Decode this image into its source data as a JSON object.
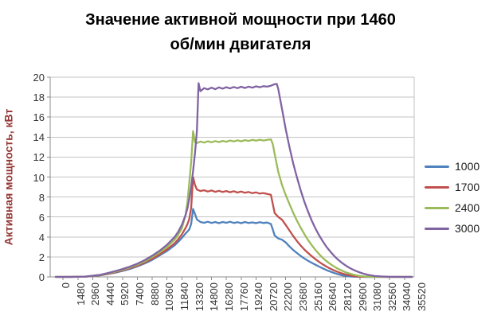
{
  "chart_data": {
    "type": "line",
    "title": "Значение активной мощности при 1460\nоб/мин двигателя",
    "xlabel": "",
    "ylabel": "Активная мощность, кВт",
    "ylabel_color": "#943634",
    "ylim": [
      0,
      20
    ],
    "xlim": [
      0,
      35520
    ],
    "grid": "horizontal-only",
    "gridline_color": "#C3C3C3",
    "axis_line_color": "#8C8C8C",
    "tick_label_color": "#333333",
    "legend_position": "right",
    "y_ticks": [
      0,
      2,
      4,
      6,
      8,
      10,
      12,
      14,
      16,
      18,
      20
    ],
    "x_ticks": [
      0,
      1480,
      2960,
      4440,
      5920,
      7400,
      8880,
      10360,
      11840,
      13320,
      14800,
      16280,
      17760,
      19240,
      20720,
      22200,
      23680,
      25160,
      26640,
      28120,
      29600,
      31080,
      32560,
      34040,
      35520
    ],
    "series": [
      {
        "name": "1000",
        "color": "#4F81BD",
        "points": [
          [
            0,
            0
          ],
          [
            1480,
            0
          ],
          [
            2960,
            0.02
          ],
          [
            4440,
            0.15
          ],
          [
            5180,
            0.28
          ],
          [
            5920,
            0.42
          ],
          [
            6660,
            0.6
          ],
          [
            7400,
            0.8
          ],
          [
            8140,
            1.05
          ],
          [
            8880,
            1.35
          ],
          [
            9620,
            1.7
          ],
          [
            10360,
            2.15
          ],
          [
            11100,
            2.6
          ],
          [
            11840,
            3.15
          ],
          [
            12210,
            3.5
          ],
          [
            12580,
            3.9
          ],
          [
            12950,
            4.35
          ],
          [
            13140,
            4.55
          ],
          [
            13320,
            4.75
          ],
          [
            13510,
            5.3
          ],
          [
            13700,
            6.8
          ],
          [
            13890,
            6.3
          ],
          [
            14080,
            5.75
          ],
          [
            14430,
            5.5
          ],
          [
            14800,
            5.42
          ],
          [
            15170,
            5.52
          ],
          [
            15540,
            5.4
          ],
          [
            15910,
            5.5
          ],
          [
            16280,
            5.38
          ],
          [
            16650,
            5.5
          ],
          [
            17020,
            5.42
          ],
          [
            17390,
            5.52
          ],
          [
            17760,
            5.4
          ],
          [
            18130,
            5.48
          ],
          [
            18500,
            5.38
          ],
          [
            18870,
            5.5
          ],
          [
            19240,
            5.4
          ],
          [
            19610,
            5.46
          ],
          [
            19980,
            5.38
          ],
          [
            20350,
            5.48
          ],
          [
            20720,
            5.4
          ],
          [
            21090,
            5.44
          ],
          [
            21460,
            5.3
          ],
          [
            21650,
            4.75
          ],
          [
            21830,
            4.15
          ],
          [
            22200,
            3.85
          ],
          [
            22570,
            3.72
          ],
          [
            22940,
            3.45
          ],
          [
            23310,
            3.05
          ],
          [
            23680,
            2.7
          ],
          [
            24050,
            2.4
          ],
          [
            24420,
            2.1
          ],
          [
            24790,
            1.85
          ],
          [
            25160,
            1.62
          ],
          [
            25530,
            1.42
          ],
          [
            25900,
            1.22
          ],
          [
            26270,
            1.03
          ],
          [
            26640,
            0.85
          ],
          [
            27010,
            0.68
          ],
          [
            27380,
            0.53
          ],
          [
            27750,
            0.4
          ],
          [
            28120,
            0.28
          ],
          [
            28490,
            0.18
          ],
          [
            28860,
            0.1
          ],
          [
            29230,
            0.05
          ],
          [
            29600,
            0.02
          ],
          [
            30340,
            0
          ],
          [
            31820,
            0
          ],
          [
            33300,
            0
          ],
          [
            34780,
            0
          ],
          [
            35520,
            0
          ]
        ]
      },
      {
        "name": "1700",
        "color": "#C0504D",
        "points": [
          [
            0,
            0
          ],
          [
            1480,
            0
          ],
          [
            2960,
            0.02
          ],
          [
            4440,
            0.17
          ],
          [
            5180,
            0.3
          ],
          [
            5920,
            0.46
          ],
          [
            6660,
            0.65
          ],
          [
            7400,
            0.87
          ],
          [
            8140,
            1.12
          ],
          [
            8880,
            1.44
          ],
          [
            9620,
            1.8
          ],
          [
            10360,
            2.25
          ],
          [
            11100,
            2.75
          ],
          [
            11840,
            3.35
          ],
          [
            12210,
            3.75
          ],
          [
            12580,
            4.25
          ],
          [
            12950,
            4.9
          ],
          [
            13140,
            5.3
          ],
          [
            13320,
            5.8
          ],
          [
            13510,
            6.9
          ],
          [
            13700,
            10.0
          ],
          [
            13890,
            9.2
          ],
          [
            14080,
            8.75
          ],
          [
            14430,
            8.6
          ],
          [
            14800,
            8.68
          ],
          [
            15170,
            8.55
          ],
          [
            15540,
            8.65
          ],
          [
            15910,
            8.52
          ],
          [
            16280,
            8.62
          ],
          [
            16650,
            8.5
          ],
          [
            17020,
            8.6
          ],
          [
            17390,
            8.48
          ],
          [
            17760,
            8.58
          ],
          [
            18130,
            8.45
          ],
          [
            18500,
            8.55
          ],
          [
            18870,
            8.42
          ],
          [
            19240,
            8.5
          ],
          [
            19610,
            8.38
          ],
          [
            19980,
            8.46
          ],
          [
            20350,
            8.34
          ],
          [
            20720,
            8.4
          ],
          [
            21090,
            8.3
          ],
          [
            21460,
            8.22
          ],
          [
            21650,
            7.3
          ],
          [
            21830,
            6.4
          ],
          [
            22200,
            6.0
          ],
          [
            22570,
            5.72
          ],
          [
            22940,
            5.2
          ],
          [
            23310,
            4.65
          ],
          [
            23680,
            4.1
          ],
          [
            24050,
            3.6
          ],
          [
            24420,
            3.15
          ],
          [
            24790,
            2.75
          ],
          [
            25160,
            2.4
          ],
          [
            25530,
            2.08
          ],
          [
            25900,
            1.78
          ],
          [
            26270,
            1.5
          ],
          [
            26640,
            1.25
          ],
          [
            27010,
            1.03
          ],
          [
            27380,
            0.83
          ],
          [
            27750,
            0.65
          ],
          [
            28120,
            0.5
          ],
          [
            28490,
            0.37
          ],
          [
            28860,
            0.26
          ],
          [
            29230,
            0.17
          ],
          [
            29600,
            0.1
          ],
          [
            29970,
            0.05
          ],
          [
            30340,
            0.02
          ],
          [
            31080,
            0
          ],
          [
            32560,
            0
          ],
          [
            34040,
            0
          ],
          [
            35520,
            0
          ]
        ]
      },
      {
        "name": "2400",
        "color": "#9BBB59",
        "points": [
          [
            0,
            0
          ],
          [
            1480,
            0
          ],
          [
            2960,
            0.03
          ],
          [
            4440,
            0.19
          ],
          [
            5180,
            0.34
          ],
          [
            5920,
            0.52
          ],
          [
            6660,
            0.72
          ],
          [
            7400,
            0.95
          ],
          [
            8140,
            1.22
          ],
          [
            8880,
            1.56
          ],
          [
            9620,
            1.98
          ],
          [
            10360,
            2.45
          ],
          [
            11100,
            3.0
          ],
          [
            11840,
            3.7
          ],
          [
            12210,
            4.2
          ],
          [
            12580,
            4.85
          ],
          [
            12950,
            6.2
          ],
          [
            13140,
            7.5
          ],
          [
            13320,
            9.4
          ],
          [
            13510,
            11.5
          ],
          [
            13700,
            14.6
          ],
          [
            13890,
            13.5
          ],
          [
            14080,
            13.4
          ],
          [
            14430,
            13.55
          ],
          [
            14800,
            13.45
          ],
          [
            15170,
            13.58
          ],
          [
            15540,
            13.48
          ],
          [
            15910,
            13.6
          ],
          [
            16280,
            13.5
          ],
          [
            16650,
            13.62
          ],
          [
            17020,
            13.54
          ],
          [
            17390,
            13.66
          ],
          [
            17760,
            13.56
          ],
          [
            18130,
            13.68
          ],
          [
            18500,
            13.58
          ],
          [
            18870,
            13.7
          ],
          [
            19240,
            13.62
          ],
          [
            19610,
            13.72
          ],
          [
            19980,
            13.64
          ],
          [
            20350,
            13.74
          ],
          [
            20720,
            13.66
          ],
          [
            21090,
            13.72
          ],
          [
            21460,
            13.78
          ],
          [
            21650,
            13.3
          ],
          [
            21830,
            12.3
          ],
          [
            22200,
            10.5
          ],
          [
            22570,
            9.2
          ],
          [
            22940,
            8.2
          ],
          [
            23310,
            7.3
          ],
          [
            23680,
            6.45
          ],
          [
            24050,
            5.65
          ],
          [
            24420,
            4.95
          ],
          [
            24790,
            4.3
          ],
          [
            25160,
            3.7
          ],
          [
            25530,
            3.18
          ],
          [
            25900,
            2.7
          ],
          [
            26270,
            2.28
          ],
          [
            26640,
            1.9
          ],
          [
            27010,
            1.58
          ],
          [
            27380,
            1.3
          ],
          [
            27750,
            1.05
          ],
          [
            28120,
            0.83
          ],
          [
            28490,
            0.65
          ],
          [
            28860,
            0.49
          ],
          [
            29230,
            0.36
          ],
          [
            29600,
            0.25
          ],
          [
            29970,
            0.16
          ],
          [
            30340,
            0.09
          ],
          [
            30710,
            0.05
          ],
          [
            31080,
            0.02
          ],
          [
            31820,
            0
          ],
          [
            33300,
            0
          ],
          [
            35520,
            0
          ]
        ]
      },
      {
        "name": "3000",
        "color": "#8064A2",
        "points": [
          [
            0,
            0
          ],
          [
            1480,
            0
          ],
          [
            2960,
            0.03
          ],
          [
            4440,
            0.21
          ],
          [
            5180,
            0.38
          ],
          [
            5920,
            0.57
          ],
          [
            6660,
            0.79
          ],
          [
            7400,
            1.03
          ],
          [
            8140,
            1.32
          ],
          [
            8880,
            1.68
          ],
          [
            9620,
            2.12
          ],
          [
            10360,
            2.62
          ],
          [
            11100,
            3.22
          ],
          [
            11840,
            3.98
          ],
          [
            12210,
            4.5
          ],
          [
            12580,
            5.2
          ],
          [
            12950,
            6.2
          ],
          [
            13140,
            6.9
          ],
          [
            13320,
            7.8
          ],
          [
            13510,
            9.0
          ],
          [
            13700,
            10.6
          ],
          [
            13890,
            12.4
          ],
          [
            14080,
            14.6
          ],
          [
            14250,
            19.4
          ],
          [
            14430,
            18.6
          ],
          [
            14800,
            18.9
          ],
          [
            15170,
            18.78
          ],
          [
            15540,
            18.95
          ],
          [
            15910,
            18.8
          ],
          [
            16280,
            18.98
          ],
          [
            16650,
            18.85
          ],
          [
            17020,
            19.0
          ],
          [
            17390,
            18.88
          ],
          [
            17760,
            19.02
          ],
          [
            18130,
            18.9
          ],
          [
            18500,
            19.04
          ],
          [
            18870,
            18.92
          ],
          [
            19240,
            19.05
          ],
          [
            19610,
            18.95
          ],
          [
            19980,
            19.08
          ],
          [
            20350,
            19.0
          ],
          [
            20720,
            19.1
          ],
          [
            21090,
            19.05
          ],
          [
            21460,
            19.15
          ],
          [
            21830,
            19.3
          ],
          [
            22050,
            19.32
          ],
          [
            22200,
            18.8
          ],
          [
            22570,
            16.8
          ],
          [
            22940,
            14.8
          ],
          [
            23310,
            13.0
          ],
          [
            23680,
            11.4
          ],
          [
            24050,
            10.0
          ],
          [
            24420,
            8.7
          ],
          [
            24790,
            7.55
          ],
          [
            25160,
            6.55
          ],
          [
            25530,
            5.65
          ],
          [
            25900,
            4.85
          ],
          [
            26270,
            4.15
          ],
          [
            26640,
            3.55
          ],
          [
            27010,
            3.0
          ],
          [
            27380,
            2.55
          ],
          [
            27750,
            2.12
          ],
          [
            28120,
            1.76
          ],
          [
            28490,
            1.45
          ],
          [
            28860,
            1.18
          ],
          [
            29230,
            0.95
          ],
          [
            29600,
            0.75
          ],
          [
            29970,
            0.58
          ],
          [
            30340,
            0.44
          ],
          [
            30710,
            0.32
          ],
          [
            31080,
            0.22
          ],
          [
            31450,
            0.15
          ],
          [
            31820,
            0.09
          ],
          [
            32560,
            0.04
          ],
          [
            33300,
            0.01
          ],
          [
            34040,
            0
          ],
          [
            35520,
            0
          ]
        ]
      }
    ]
  }
}
